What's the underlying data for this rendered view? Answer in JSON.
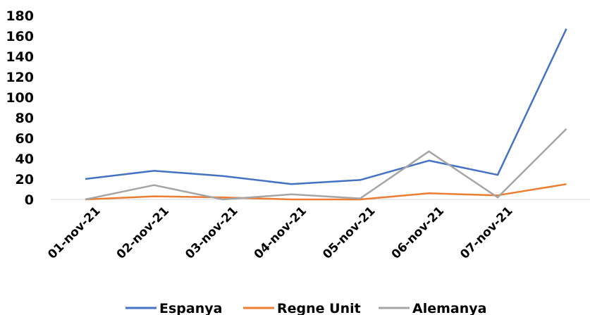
{
  "chart_data": {
    "type": "line",
    "title": "",
    "xlabel": "",
    "ylabel": "",
    "ylim": [
      0,
      180
    ],
    "yticks": [
      0,
      20,
      40,
      60,
      80,
      100,
      120,
      140,
      160,
      180
    ],
    "categories": [
      "01-nov-21",
      "02-nov-21",
      "03-nov-21",
      "04-nov-21",
      "05-nov-21",
      "06-nov-21",
      "07-nov-21",
      ""
    ],
    "series": [
      {
        "name": "Espanya",
        "color": "#4472C4",
        "values": [
          20,
          28,
          23,
          15,
          19,
          38,
          24,
          167
        ]
      },
      {
        "name": "Regne Unit",
        "color": "#ED7D31",
        "values": [
          0,
          3,
          2,
          0,
          0,
          6,
          4,
          15
        ]
      },
      {
        "name": "Alemanya",
        "color": "#A5A5A5",
        "values": [
          0,
          14,
          0,
          5,
          1,
          47,
          2,
          69
        ]
      }
    ],
    "grid": false,
    "legend": "bottom"
  }
}
